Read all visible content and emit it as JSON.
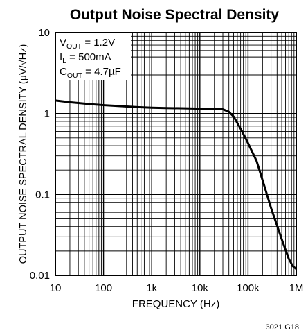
{
  "chart_data": {
    "type": "line",
    "title": "Output Noise Spectral Density",
    "xlabel": "FREQUENCY (Hz)",
    "ylabel": "OUTPUT NOISE SPECTRAL DENSITY (µV/√Hz)",
    "x_scale": "log",
    "y_scale": "log",
    "xlim": [
      10,
      1000000
    ],
    "ylim": [
      0.01,
      10
    ],
    "grid": true,
    "x_ticks": [
      {
        "value": 10,
        "label": "10"
      },
      {
        "value": 100,
        "label": "100"
      },
      {
        "value": 1000,
        "label": "1k"
      },
      {
        "value": 10000,
        "label": "10k"
      },
      {
        "value": 100000,
        "label": "100k"
      },
      {
        "value": 1000000,
        "label": "1M"
      }
    ],
    "y_ticks": [
      {
        "value": 0.01,
        "label": "0.01"
      },
      {
        "value": 0.1,
        "label": "0.1"
      },
      {
        "value": 1,
        "label": "1"
      },
      {
        "value": 10,
        "label": "10"
      }
    ],
    "annotations": [
      {
        "main": "V",
        "sub": "OUT",
        "rest": " = 1.2V"
      },
      {
        "main": "I",
        "sub": "L",
        "rest": " = 500mA"
      },
      {
        "main": "C",
        "sub": "OUT",
        "rest": " = 4.7µF"
      }
    ],
    "series": [
      {
        "x": [
          10,
          20,
          50,
          100,
          200,
          500,
          1000,
          2000,
          5000,
          10000,
          20000,
          30000,
          40000,
          50000,
          70000,
          100000,
          150000,
          200000,
          300000,
          500000,
          700000,
          850000,
          1000000
        ],
        "y": [
          1.45,
          1.38,
          1.31,
          1.27,
          1.24,
          1.2,
          1.18,
          1.17,
          1.16,
          1.15,
          1.15,
          1.13,
          1.05,
          0.92,
          0.65,
          0.43,
          0.26,
          0.15,
          0.068,
          0.028,
          0.016,
          0.013,
          0.012
        ]
      }
    ],
    "figure_id": "3021 G18"
  }
}
